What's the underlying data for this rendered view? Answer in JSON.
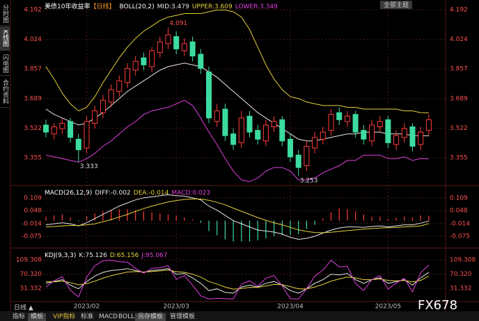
{
  "chart_data": [
    {
      "type": "candlestick",
      "title": "美债10年收益率",
      "subtitle": "【日线】",
      "indicator": "BOLL(20,2)",
      "categories": [
        null,
        null,
        null,
        null,
        null,
        "2023/02",
        null,
        null,
        null,
        null,
        null,
        null,
        null,
        null,
        null,
        null,
        "2023/03",
        null,
        null,
        null,
        null,
        null,
        null,
        null,
        null,
        null,
        null,
        null,
        null,
        null,
        "2023/04",
        null,
        null,
        null,
        null,
        null,
        null,
        null,
        null,
        null,
        null,
        null,
        "2023/05",
        null,
        null,
        null,
        null,
        null
      ],
      "open": [
        3.54,
        3.49,
        3.52,
        3.56,
        3.46,
        3.41,
        3.55,
        3.61,
        3.67,
        3.73,
        3.78,
        3.85,
        3.92,
        3.87,
        3.95,
        4.0,
        4.04,
        3.96,
        4.01,
        3.94,
        3.84,
        3.56,
        3.63,
        3.49,
        3.44,
        3.59,
        3.51,
        3.45,
        3.53,
        3.57,
        3.46,
        3.37,
        3.31,
        3.41,
        3.46,
        3.51,
        3.61,
        3.56,
        3.6,
        3.51,
        3.45,
        3.53,
        3.57,
        3.43,
        3.47,
        3.53,
        3.43,
        3.51
      ],
      "high": [
        3.57,
        3.55,
        3.58,
        3.58,
        3.49,
        3.59,
        3.65,
        3.71,
        3.77,
        3.82,
        3.89,
        3.93,
        3.95,
        3.98,
        4.04,
        4.091,
        4.07,
        4.03,
        4.04,
        3.97,
        3.87,
        3.66,
        3.66,
        3.52,
        3.62,
        3.62,
        3.54,
        3.57,
        3.59,
        3.59,
        3.49,
        3.4,
        3.45,
        3.5,
        3.53,
        3.63,
        3.64,
        3.62,
        3.62,
        3.54,
        3.57,
        3.59,
        3.59,
        3.51,
        3.55,
        3.55,
        3.53,
        3.6
      ],
      "low": [
        3.47,
        3.46,
        3.49,
        3.44,
        3.333,
        3.38,
        3.52,
        3.58,
        3.64,
        3.7,
        3.75,
        3.82,
        3.85,
        3.84,
        3.92,
        3.97,
        3.94,
        3.93,
        3.9,
        3.83,
        3.55,
        3.53,
        3.45,
        3.4,
        3.41,
        3.47,
        3.43,
        3.42,
        3.5,
        3.42,
        3.33,
        3.253,
        3.28,
        3.38,
        3.43,
        3.48,
        3.54,
        3.53,
        3.47,
        3.43,
        3.42,
        3.5,
        3.41,
        3.4,
        3.44,
        3.39,
        3.4,
        3.48
      ],
      "close": [
        3.5,
        3.53,
        3.55,
        3.47,
        3.4,
        3.56,
        3.62,
        3.68,
        3.74,
        3.79,
        3.86,
        3.9,
        3.88,
        3.96,
        4.01,
        4.05,
        3.97,
        4.0,
        3.93,
        3.86,
        3.58,
        3.62,
        3.48,
        3.43,
        3.58,
        3.5,
        3.46,
        3.54,
        3.56,
        3.45,
        3.36,
        3.3,
        3.42,
        3.47,
        3.5,
        3.6,
        3.57,
        3.59,
        3.5,
        3.46,
        3.54,
        3.56,
        3.44,
        3.48,
        3.52,
        3.42,
        3.5,
        3.57
      ],
      "up_color": "#ff3b3b",
      "down_color": "#3cdca0",
      "series": [
        {
          "name": "MID:3.479",
          "color": "#e8e8e8",
          "values": [
            3.63,
            3.6,
            3.58,
            3.56,
            3.54,
            3.55,
            3.58,
            3.61,
            3.65,
            3.69,
            3.73,
            3.76,
            3.79,
            3.82,
            3.85,
            3.87,
            3.88,
            3.89,
            3.88,
            3.87,
            3.84,
            3.81,
            3.77,
            3.73,
            3.69,
            3.65,
            3.61,
            3.58,
            3.55,
            3.52,
            3.49,
            3.46,
            3.45,
            3.45,
            3.46,
            3.47,
            3.48,
            3.49,
            3.49,
            3.5,
            3.5,
            3.5,
            3.49,
            3.49,
            3.49,
            3.48,
            3.48,
            3.479
          ]
        },
        {
          "name": "UPPER:3.609",
          "color": "#e6d23c",
          "values": [
            3.87,
            3.8,
            3.72,
            3.66,
            3.62,
            3.64,
            3.7,
            3.78,
            3.85,
            3.92,
            3.98,
            4.03,
            4.07,
            4.1,
            4.13,
            4.15,
            4.16,
            4.17,
            4.17,
            4.17,
            4.18,
            4.19,
            4.19,
            4.18,
            4.15,
            4.08,
            3.98,
            3.88,
            3.8,
            3.74,
            3.7,
            3.69,
            3.67,
            3.66,
            3.65,
            3.65,
            3.65,
            3.64,
            3.64,
            3.63,
            3.63,
            3.63,
            3.63,
            3.63,
            3.62,
            3.62,
            3.61,
            3.609
          ]
        },
        {
          "name": "LOWER:3.349",
          "color": "#e040e0",
          "values": [
            3.37,
            3.36,
            3.35,
            3.34,
            3.33,
            3.35,
            3.38,
            3.42,
            3.45,
            3.49,
            3.53,
            3.56,
            3.6,
            3.62,
            3.63,
            3.64,
            3.66,
            3.68,
            3.65,
            3.58,
            3.5,
            3.43,
            3.35,
            3.28,
            3.23,
            3.22,
            3.24,
            3.28,
            3.3,
            3.3,
            3.28,
            3.23,
            3.23,
            3.24,
            3.27,
            3.29,
            3.31,
            3.34,
            3.34,
            3.37,
            3.37,
            3.37,
            3.35,
            3.35,
            3.36,
            3.34,
            3.35,
            3.349
          ]
        }
      ],
      "ylim": [
        3.206,
        4.227
      ],
      "yticks": [
        3.355,
        3.522,
        3.689,
        3.857,
        4.024,
        4.192
      ],
      "grid": true
    },
    {
      "type": "macd",
      "indicator": "MACD(26,12,9)",
      "series": [
        {
          "name": "DIFF:-0.002",
          "color": "#e8e8e8",
          "style": "line",
          "values": [
            -0.02,
            -0.015,
            -0.01,
            -0.015,
            -0.025,
            -0.01,
            0.01,
            0.03,
            0.05,
            0.07,
            0.085,
            0.1,
            0.11,
            0.115,
            0.12,
            0.125,
            0.12,
            0.118,
            0.11,
            0.1,
            0.07,
            0.05,
            0.025,
            0.0,
            -0.015,
            -0.03,
            -0.045,
            -0.05,
            -0.055,
            -0.065,
            -0.08,
            -0.09,
            -0.085,
            -0.075,
            -0.06,
            -0.045,
            -0.035,
            -0.03,
            -0.03,
            -0.032,
            -0.028,
            -0.025,
            -0.03,
            -0.025,
            -0.02,
            -0.02,
            -0.012,
            -0.002
          ]
        },
        {
          "name": "DEA:-0.014",
          "color": "#e6d23c",
          "style": "line",
          "values": [
            -0.03,
            -0.028,
            -0.025,
            -0.023,
            -0.023,
            -0.02,
            -0.015,
            -0.005,
            0.005,
            0.018,
            0.03,
            0.045,
            0.058,
            0.07,
            0.08,
            0.09,
            0.097,
            0.102,
            0.105,
            0.104,
            0.098,
            0.088,
            0.076,
            0.06,
            0.045,
            0.03,
            0.015,
            0.002,
            -0.01,
            -0.02,
            -0.032,
            -0.044,
            -0.052,
            -0.057,
            -0.058,
            -0.056,
            -0.052,
            -0.048,
            -0.044,
            -0.041,
            -0.038,
            -0.035,
            -0.034,
            -0.032,
            -0.03,
            -0.028,
            -0.025,
            -0.014
          ]
        },
        {
          "name": "MACD:0.023",
          "color": "#e040e0",
          "up_color": "#ff3b3b",
          "down_color": "#3cdca0",
          "style": "bar",
          "values": [
            0.02,
            0.025,
            0.03,
            0.016,
            -0.004,
            0.02,
            0.035,
            0.045,
            0.05,
            0.055,
            0.055,
            0.05,
            0.045,
            0.04,
            0.035,
            0.03,
            0.025,
            0.015,
            0.005,
            -0.01,
            -0.05,
            -0.07,
            -0.09,
            -0.1,
            -0.1,
            -0.1,
            -0.095,
            -0.085,
            -0.075,
            -0.07,
            -0.07,
            -0.065,
            -0.04,
            -0.02,
            0.01,
            0.04,
            0.06,
            0.055,
            0.045,
            0.03,
            0.02,
            0.02,
            0.008,
            0.014,
            0.02,
            0.016,
            0.026,
            0.023
          ]
        }
      ],
      "ylim": [
        -0.115,
        0.159
      ],
      "yticks": [
        -0.075,
        -0.014,
        0.048,
        0.109
      ],
      "grid": true
    },
    {
      "type": "kdj",
      "indicator": "KDJ(9,3,3)",
      "series": [
        {
          "name": "K:75.126",
          "color": "#e8e8e8",
          "style": "line",
          "values": [
            45,
            50,
            55,
            40,
            30,
            50,
            65,
            75,
            80,
            82,
            85,
            80,
            75,
            80,
            82,
            85,
            70,
            72,
            60,
            45,
            25,
            30,
            20,
            18,
            35,
            40,
            35,
            45,
            50,
            40,
            25,
            18,
            30,
            45,
            55,
            70,
            68,
            72,
            55,
            45,
            55,
            60,
            45,
            50,
            55,
            40,
            60,
            75.126
          ]
        },
        {
          "name": "D:65.156",
          "color": "#e6d23c",
          "style": "line",
          "values": [
            50,
            49,
            51,
            47,
            41,
            44,
            51,
            59,
            66,
            71,
            76,
            77,
            76,
            77,
            79,
            81,
            77,
            75,
            70,
            62,
            50,
            43,
            35,
            29,
            31,
            34,
            34,
            38,
            42,
            41,
            36,
            30,
            30,
            35,
            42,
            51,
            57,
            62,
            60,
            55,
            55,
            57,
            53,
            52,
            53,
            49,
            53,
            65.156
          ]
        },
        {
          "name": "J:95.067",
          "color": "#e040e0",
          "style": "line",
          "values": [
            35,
            52,
            63,
            26,
            8,
            62,
            93,
            107,
            108,
            104,
            103,
            86,
            73,
            86,
            88,
            93,
            56,
            66,
            40,
            11,
            2,
            4,
            3,
            2,
            43,
            52,
            37,
            59,
            66,
            38,
            3,
            2,
            30,
            65,
            81,
            108,
            90,
            92,
            45,
            25,
            55,
            66,
            29,
            46,
            59,
            22,
            74,
            95.067
          ]
        }
      ],
      "ylim": [
        -1,
        132
      ],
      "yticks": [
        31.332,
        {
          "value": 70.32,
          "label": "70.320"
        },
        109.308
      ],
      "grid": true
    }
  ],
  "ui": {
    "sidebar": [
      "分时图",
      "K线图",
      "闪电图",
      "合约资料"
    ],
    "theme_button": "全部主题",
    "period": "日线 ▲",
    "watermark": "FX678",
    "toolbar": [
      "指标",
      "模板",
      "VIP指标",
      "标准",
      "MACD",
      "BOLL",
      "另存模板",
      "管理模板"
    ]
  }
}
